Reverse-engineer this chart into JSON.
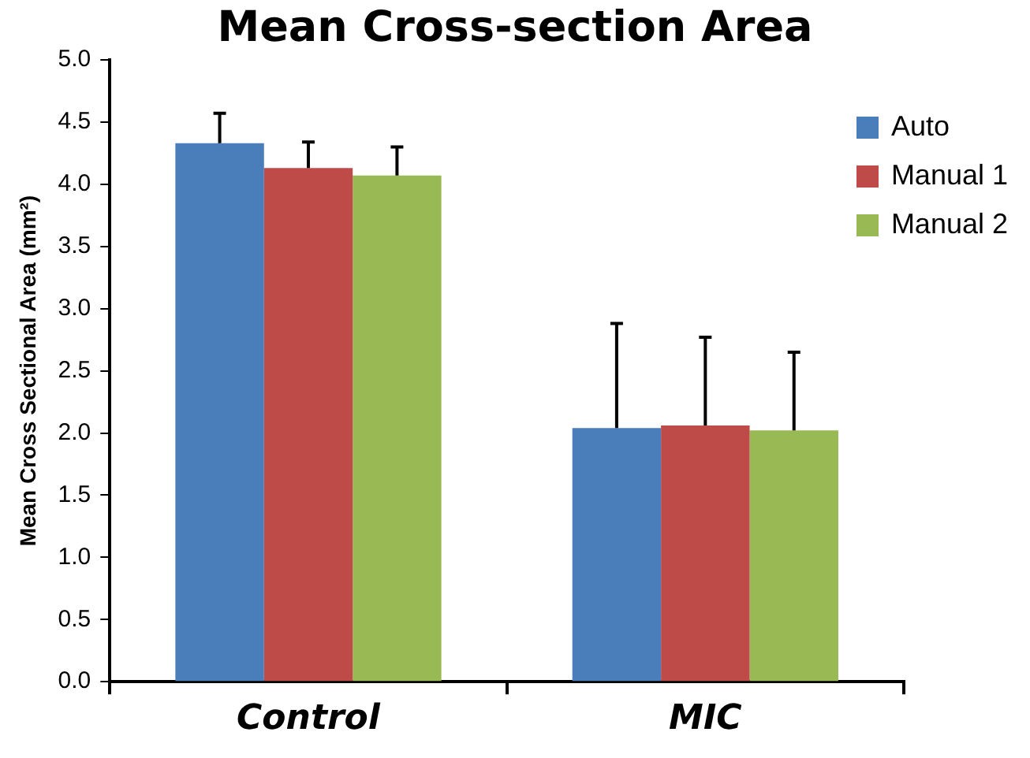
{
  "chart_data": {
    "type": "bar",
    "title": "Mean Cross-section Area",
    "ylabel": "Mean Cross Sectional Area (mm²)",
    "categories": [
      "Control",
      "MIC"
    ],
    "series": [
      {
        "name": "Auto",
        "color": "#4a7ebb",
        "values": [
          4.33,
          2.04
        ],
        "errors": [
          [
            4.33,
            4.57
          ],
          [
            2.04,
            2.88
          ]
        ]
      },
      {
        "name": "Manual 1",
        "color": "#be4b48",
        "values": [
          4.13,
          2.06
        ],
        "errors": [
          [
            4.13,
            4.34
          ],
          [
            2.06,
            2.77
          ]
        ]
      },
      {
        "name": "Manual 2",
        "color": "#98b954",
        "values": [
          4.07,
          2.02
        ],
        "errors": [
          [
            4.07,
            4.3
          ],
          [
            2.02,
            2.65
          ]
        ]
      }
    ],
    "ylim": [
      0,
      5
    ],
    "yticks": [
      {
        "value": 0,
        "label": "0.0"
      },
      0.5,
      {
        "value": 1,
        "label": "1.0"
      },
      1.5,
      {
        "value": 2,
        "label": "2.0"
      },
      2.5,
      {
        "value": 3,
        "label": "3.0"
      },
      3.5,
      {
        "value": 4,
        "label": "4.0"
      },
      4.5,
      {
        "value": 5,
        "label": "5.0"
      }
    ],
    "grid": false,
    "legend": "top right"
  }
}
